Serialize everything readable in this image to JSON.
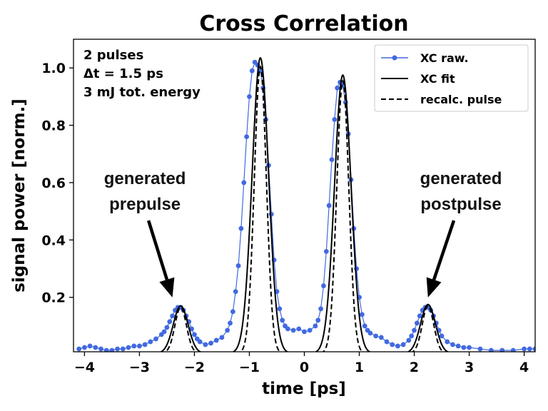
{
  "chart_data": {
    "type": "line",
    "title": "Cross Correlation",
    "xlabel": "time [ps]",
    "ylabel": "signal power [norm.]",
    "xlim": [
      -4.2,
      4.2
    ],
    "ylim": [
      0.01,
      1.1
    ],
    "xticks": [
      -4,
      -3,
      -2,
      -1,
      0,
      1,
      2,
      3,
      4
    ],
    "xtick_labels": [
      "−4",
      "−3",
      "−2",
      "−1",
      "0",
      "1",
      "2",
      "3",
      "4"
    ],
    "yticks": [
      0.2,
      0.4,
      0.6,
      0.8,
      1.0
    ],
    "ytick_labels": [
      "0.2",
      "0.4",
      "0.6",
      "0.8",
      "1.0"
    ],
    "info_box": [
      "2 pulses",
      "Δt = 1.5 ps",
      "3 mJ tot. energy"
    ],
    "legend": [
      "XC raw.",
      "XC fit",
      "recalc. pulse"
    ],
    "legend_position": "top-right",
    "annotations": [
      {
        "lines": [
          "generated",
          "prepulse"
        ],
        "text_at": [
          -2.9,
          0.53
        ],
        "arrow_to": [
          -2.4,
          0.2
        ]
      },
      {
        "lines": [
          "generated",
          "postpulse"
        ],
        "text_at": [
          2.85,
          0.53
        ],
        "arrow_to": [
          2.25,
          0.2
        ]
      }
    ],
    "series": [
      {
        "name": "XC raw.",
        "style": "line-with-dots",
        "color": "#4169e1",
        "x": [
          -4.1,
          -4.0,
          -3.9,
          -3.8,
          -3.7,
          -3.6,
          -3.5,
          -3.4,
          -3.3,
          -3.2,
          -3.1,
          -3.0,
          -2.9,
          -2.8,
          -2.7,
          -2.6,
          -2.55,
          -2.5,
          -2.45,
          -2.4,
          -2.35,
          -2.3,
          -2.25,
          -2.2,
          -2.15,
          -2.1,
          -2.05,
          -2.0,
          -1.95,
          -1.9,
          -1.8,
          -1.7,
          -1.6,
          -1.5,
          -1.4,
          -1.35,
          -1.3,
          -1.25,
          -1.2,
          -1.15,
          -1.1,
          -1.05,
          -1.0,
          -0.95,
          -0.9,
          -0.85,
          -0.8,
          -0.75,
          -0.7,
          -0.65,
          -0.6,
          -0.55,
          -0.5,
          -0.45,
          -0.4,
          -0.35,
          -0.3,
          -0.2,
          -0.1,
          0.0,
          0.1,
          0.2,
          0.25,
          0.3,
          0.35,
          0.4,
          0.45,
          0.5,
          0.55,
          0.6,
          0.65,
          0.7,
          0.75,
          0.8,
          0.85,
          0.9,
          0.95,
          1.0,
          1.05,
          1.1,
          1.15,
          1.2,
          1.3,
          1.4,
          1.5,
          1.6,
          1.7,
          1.8,
          1.9,
          1.95,
          2.0,
          2.05,
          2.1,
          2.15,
          2.2,
          2.25,
          2.3,
          2.35,
          2.4,
          2.45,
          2.5,
          2.6,
          2.7,
          2.8,
          2.9,
          3.0,
          3.2,
          3.4,
          3.6,
          3.8,
          4.0,
          4.1,
          4.2
        ],
        "y": [
          0.02,
          0.025,
          0.03,
          0.025,
          0.02,
          0.015,
          0.015,
          0.02,
          0.02,
          0.025,
          0.03,
          0.03,
          0.035,
          0.045,
          0.055,
          0.07,
          0.08,
          0.095,
          0.115,
          0.135,
          0.155,
          0.165,
          0.165,
          0.155,
          0.135,
          0.115,
          0.09,
          0.07,
          0.055,
          0.045,
          0.035,
          0.04,
          0.05,
          0.06,
          0.085,
          0.11,
          0.15,
          0.22,
          0.31,
          0.44,
          0.6,
          0.76,
          0.9,
          0.99,
          1.02,
          1.01,
          0.99,
          0.93,
          0.82,
          0.66,
          0.49,
          0.33,
          0.22,
          0.16,
          0.12,
          0.1,
          0.09,
          0.085,
          0.09,
          0.08,
          0.085,
          0.1,
          0.12,
          0.16,
          0.24,
          0.36,
          0.52,
          0.68,
          0.82,
          0.93,
          0.95,
          0.94,
          0.88,
          0.77,
          0.61,
          0.44,
          0.3,
          0.2,
          0.14,
          0.1,
          0.085,
          0.075,
          0.065,
          0.06,
          0.045,
          0.035,
          0.03,
          0.035,
          0.05,
          0.065,
          0.085,
          0.11,
          0.135,
          0.155,
          0.165,
          0.165,
          0.155,
          0.135,
          0.11,
          0.085,
          0.065,
          0.045,
          0.035,
          0.03,
          0.025,
          0.025,
          0.02,
          0.015,
          0.015,
          0.015,
          0.02,
          0.02,
          0.02
        ]
      },
      {
        "name": "XC fit",
        "style": "solid",
        "color": "#000000",
        "peaks": [
          {
            "center": -2.25,
            "amplitude": 0.165,
            "sigma": 0.135
          },
          {
            "center": -0.8,
            "amplitude": 1.03,
            "sigma": 0.15
          },
          {
            "center": 0.7,
            "amplitude": 0.97,
            "sigma": 0.15
          },
          {
            "center": 2.25,
            "amplitude": 0.17,
            "sigma": 0.135
          }
        ]
      },
      {
        "name": "recalc. pulse",
        "style": "dashed",
        "color": "#000000",
        "peaks": [
          {
            "center": -2.25,
            "amplitude": 0.16,
            "sigma": 0.105
          },
          {
            "center": -0.8,
            "amplitude": 1.0,
            "sigma": 0.11
          },
          {
            "center": 0.7,
            "amplitude": 0.95,
            "sigma": 0.11
          },
          {
            "center": 2.25,
            "amplitude": 0.165,
            "sigma": 0.105
          }
        ]
      }
    ]
  }
}
